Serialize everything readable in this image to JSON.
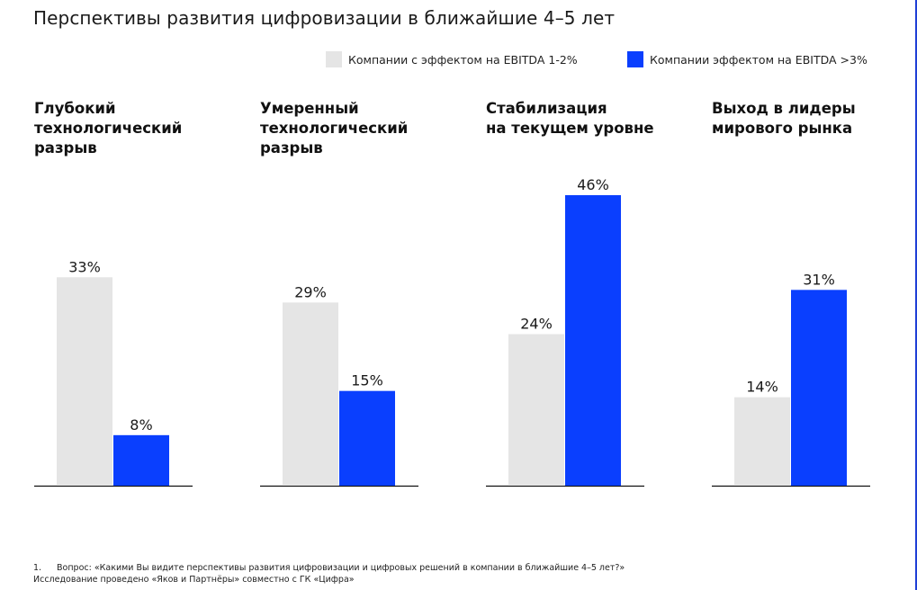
{
  "title": "Перспективы развития цифровизации в ближайшие 4–5 лет",
  "legend": [
    {
      "label": "Компании с эффектом на EBITDA 1-2%",
      "color": "#e5e5e5"
    },
    {
      "label": "Компании эффектом на EBITDA >3%",
      "color": "#0a3ffe"
    }
  ],
  "footnote": {
    "number": "1.",
    "question": "Вопрос: «Какими Вы видите перспективы развития цифровизации и цифровых решений в компании в ближайшие 4–5 лет?»",
    "source": "Исследование проведено «Яков и Партнёры» совместно с ГК «Цифра»"
  },
  "chart_data": {
    "type": "bar",
    "title": "Перспективы развития цифровизации в ближайшие 4–5 лет",
    "xlabel": "",
    "ylabel": "",
    "unit": "%",
    "ylim": [
      0,
      46
    ],
    "grid": false,
    "legend_position": "top-right",
    "categories": [
      "Глубокий технологический разрыв",
      "Умеренный технологический разрыв",
      "Стабилизация на текущем уровне",
      "Выход в лидеры мирового рынка"
    ],
    "category_lines": [
      [
        "Глубокий",
        "технологический",
        "разрыв"
      ],
      [
        "Умеренный",
        "технологический",
        "разрыв"
      ],
      [
        "Стабилизация",
        "на текущем уровне"
      ],
      [
        "Выход в лидеры",
        "мирового рынка"
      ]
    ],
    "series": [
      {
        "name": "Компании с эффектом на EBITDA 1-2%",
        "color": "#e5e5e5",
        "values": [
          33,
          29,
          24,
          14
        ]
      },
      {
        "name": "Компании эффектом на EBITDA >3%",
        "color": "#0a3ffe",
        "values": [
          8,
          15,
          46,
          31
        ]
      }
    ],
    "data_labels": [
      [
        "33%",
        "29%",
        "24%",
        "14%"
      ],
      [
        "8%",
        "15%",
        "46%",
        "31%"
      ]
    ]
  }
}
